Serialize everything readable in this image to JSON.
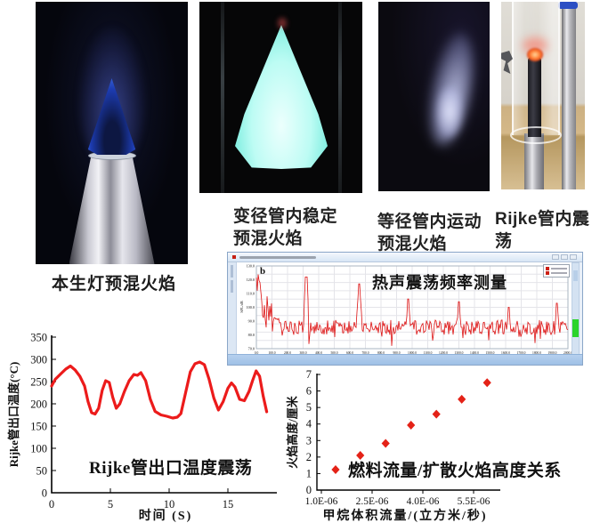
{
  "colors": {
    "accent_red": "#e32119",
    "curve_red": "#ec1b1b",
    "window_chrome": "#dce9f7",
    "window_status": "#a9c6e8",
    "green_indicator": "#2bd42b",
    "flame_blue": "#3f7df5",
    "flame_cyan": "#9ff0ea"
  },
  "photos": [
    {
      "name": "bunsen-premixed-flame-photo",
      "caption": "本生灯预混火焰"
    },
    {
      "name": "tapered-tube-stable-flame-photo",
      "line1": "变径管内稳定",
      "line2": "预混火焰"
    },
    {
      "name": "uniform-tube-moving-flame-photo",
      "line1": "等径管内运动",
      "line2": "预混火焰"
    },
    {
      "name": "rijke-tube-oscillating-flame-photo",
      "line1": "Rijke管内震荡",
      "line2": "预混火焰"
    }
  ],
  "chart_data": [
    {
      "type": "line",
      "name": "thermoacoustic-frequency-spectrum",
      "title": "热声震荡频率测量",
      "panel_label": "b",
      "ylabel": "SPL/dB",
      "x_range": [
        0,
        2000
      ],
      "x_tick_step": 100,
      "y_range": [
        70,
        130
      ],
      "y_tick_step": 10,
      "baseline_db": 85.5,
      "noise_db": 5.5,
      "initial_db": 114,
      "initial_fraction": 0.075,
      "peaks": [
        {
          "x": 320,
          "db": 122
        },
        {
          "x": 660,
          "db": 117
        },
        {
          "x": 975,
          "db": 106
        },
        {
          "x": 1300,
          "db": 104
        },
        {
          "x": 1620,
          "db": 100
        },
        {
          "x": 1930,
          "db": 103
        }
      ],
      "grid": true,
      "legend_position": "top-right",
      "color": "#dd1111"
    },
    {
      "type": "line",
      "name": "rijke-outlet-temperature-oscillation",
      "title": "Rijke管出口温度震荡",
      "xlabel": "时间 (S)",
      "ylabel": "Rijke管出口温度(°C)",
      "x_range": [
        0,
        19
      ],
      "y_range": [
        0,
        350
      ],
      "x_ticks": [
        0,
        5,
        10,
        15
      ],
      "y_ticks": [
        0,
        50,
        100,
        150,
        200,
        250,
        300,
        350
      ],
      "color": "#ec1b1b",
      "x": [
        0,
        0.3,
        0.8,
        1.2,
        1.6,
        2.0,
        2.4,
        2.8,
        3.1,
        3.4,
        3.7,
        4.0,
        4.3,
        4.6,
        4.9,
        5.2,
        5.5,
        5.8,
        6.2,
        6.6,
        7.0,
        7.3,
        7.6,
        8.0,
        8.4,
        8.8,
        9.3,
        9.8,
        10.3,
        10.7,
        11.0,
        11.4,
        11.8,
        12.2,
        12.6,
        13.0,
        13.4,
        13.8,
        14.2,
        14.6,
        15.0,
        15.3,
        15.6,
        16.0,
        16.4,
        16.8,
        17.1,
        17.4,
        17.7,
        18.0,
        18.3
      ],
      "y": [
        240,
        255,
        268,
        278,
        285,
        276,
        262,
        240,
        205,
        180,
        177,
        190,
        230,
        252,
        248,
        215,
        190,
        200,
        228,
        252,
        266,
        264,
        270,
        252,
        210,
        183,
        175,
        172,
        168,
        170,
        178,
        225,
        272,
        290,
        294,
        288,
        255,
        213,
        186,
        205,
        235,
        247,
        238,
        210,
        207,
        228,
        252,
        274,
        262,
        218,
        182
      ]
    },
    {
      "type": "scatter",
      "name": "fuel-flow-vs-diffusion-flame-height",
      "title": "燃料流量/扩散火焰高度关系",
      "xlabel": "甲烷体积流量/(立方米/秒)",
      "ylabel": "火焰高度/厘米",
      "x_range": [
        1e-06,
        6.1e-06
      ],
      "y_range": [
        0,
        7
      ],
      "x_tick_values": [
        1e-06,
        2.5e-06,
        4e-06,
        5.5e-06
      ],
      "x_tick_labels": [
        "1.0E-06",
        "2.5E-06",
        "4.0E-06",
        "5.5E-06"
      ],
      "y_ticks": [
        0,
        1,
        2,
        3,
        4,
        5,
        6,
        7
      ],
      "marker": "diamond",
      "color": "#e42217",
      "x": [
        2.15e-06,
        2.9e-06,
        3.65e-06,
        4.4e-06,
        5.15e-06,
        5.9e-06
      ],
      "y": [
        2.1,
        2.83,
        3.93,
        4.6,
        5.5,
        6.5
      ],
      "annotation_marker_xy": [
        1.42e-06,
        1.24
      ]
    }
  ]
}
